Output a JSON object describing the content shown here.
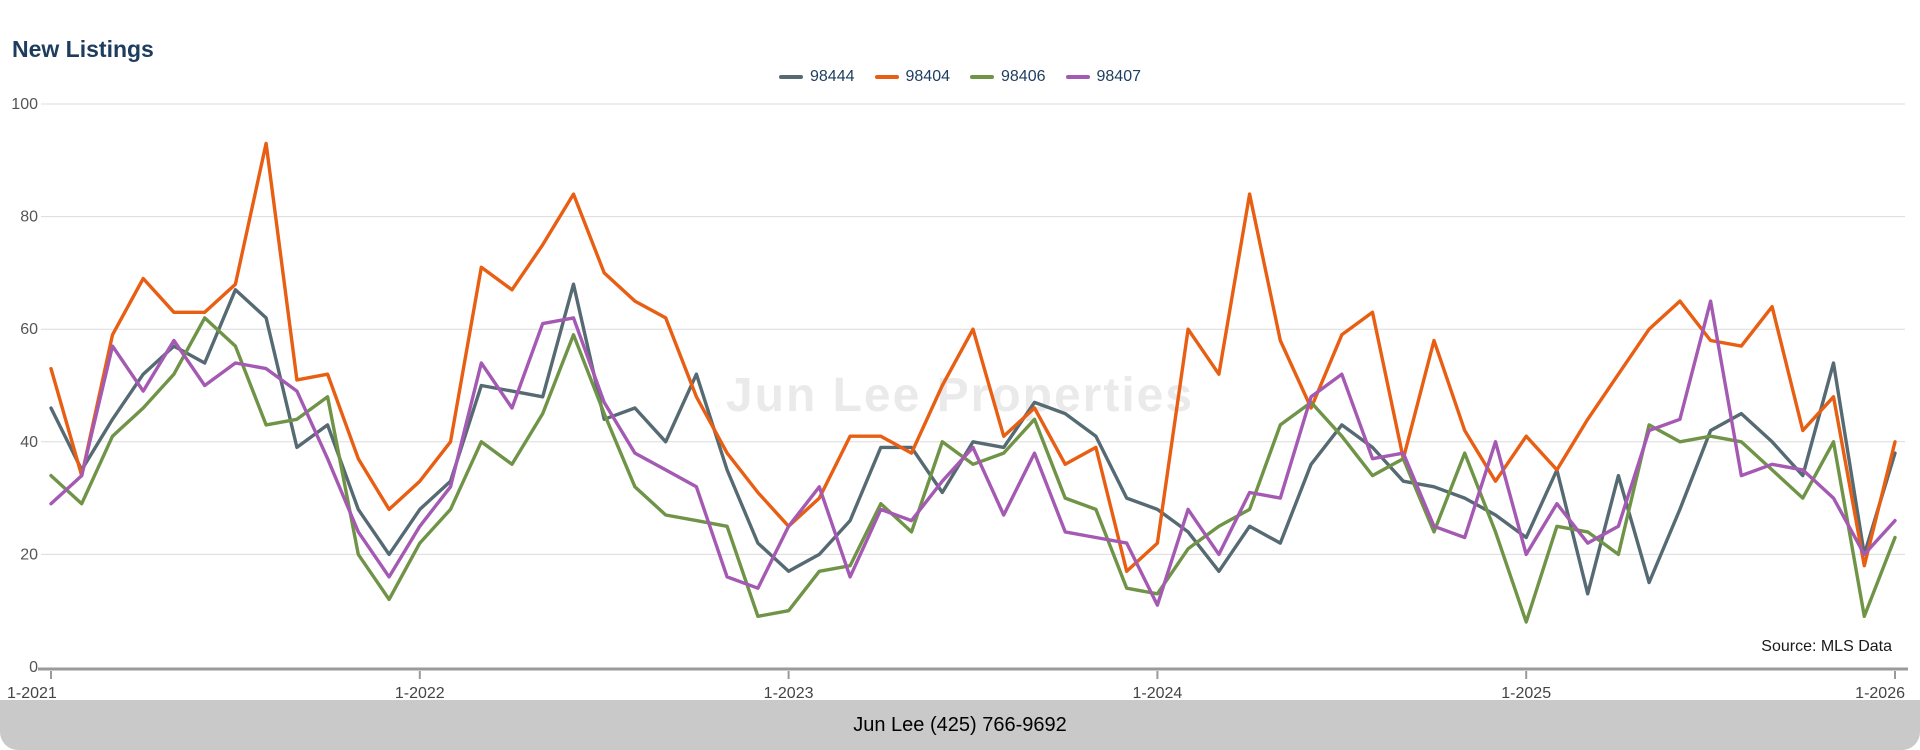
{
  "title": "New Listings",
  "watermark": "Jun Lee Properties",
  "source": "Source: MLS Data",
  "footer": "Jun Lee (425) 766-9692",
  "chart_data": {
    "type": "line",
    "title": "New Listings",
    "xlabel": "",
    "ylabel": "",
    "ylim": [
      0,
      100
    ],
    "yticks": [
      0,
      20,
      40,
      60,
      80,
      100
    ],
    "grid": true,
    "legend_position": "top-center",
    "x_tick_labels": [
      "1-2021",
      "1-2022",
      "1-2023",
      "1-2024",
      "1-2025",
      "1-2026"
    ],
    "x_tick_indices": [
      0,
      12,
      24,
      36,
      48,
      60
    ],
    "x_unit": "month",
    "series": [
      {
        "name": "98444",
        "color": "#566a73",
        "values": [
          46,
          35,
          44,
          52,
          57,
          54,
          67,
          62,
          39,
          43,
          28,
          20,
          28,
          33,
          50,
          49,
          48,
          68,
          44,
          46,
          40,
          52,
          35,
          22,
          17,
          20,
          26,
          39,
          39,
          31,
          40,
          39,
          47,
          45,
          41,
          30,
          28,
          24,
          17,
          25,
          22,
          36,
          43,
          39,
          33,
          32,
          30,
          27,
          23,
          35,
          13,
          34,
          15,
          28,
          42,
          45,
          40,
          34,
          54,
          20,
          38
        ]
      },
      {
        "name": "98404",
        "color": "#e85e12",
        "values": [
          53,
          34,
          59,
          69,
          63,
          63,
          68,
          93,
          51,
          52,
          37,
          28,
          33,
          40,
          71,
          67,
          75,
          84,
          70,
          65,
          62,
          48,
          38,
          31,
          25,
          30,
          41,
          41,
          38,
          50,
          60,
          41,
          46,
          36,
          39,
          17,
          22,
          60,
          52,
          84,
          58,
          46,
          59,
          63,
          37,
          58,
          42,
          33,
          41,
          35,
          44,
          52,
          60,
          65,
          58,
          57,
          64,
          42,
          48,
          18,
          40
        ]
      },
      {
        "name": "98406",
        "color": "#6f9447",
        "values": [
          34,
          29,
          41,
          46,
          52,
          62,
          57,
          43,
          44,
          48,
          20,
          12,
          22,
          28,
          40,
          36,
          45,
          59,
          45,
          32,
          27,
          26,
          25,
          9,
          10,
          17,
          18,
          29,
          24,
          40,
          36,
          38,
          44,
          30,
          28,
          14,
          13,
          21,
          25,
          28,
          43,
          47,
          41,
          34,
          37,
          24,
          38,
          24,
          8,
          25,
          24,
          20,
          43,
          40,
          41,
          40,
          35,
          30,
          40,
          9,
          23
        ]
      },
      {
        "name": "98407",
        "color": "#a45ab2",
        "values": [
          29,
          34,
          57,
          49,
          58,
          50,
          54,
          53,
          49,
          37,
          24,
          16,
          25,
          32,
          54,
          46,
          61,
          62,
          47,
          38,
          35,
          32,
          16,
          14,
          25,
          32,
          16,
          28,
          26,
          33,
          39,
          27,
          38,
          24,
          23,
          22,
          11,
          28,
          20,
          31,
          30,
          48,
          52,
          37,
          38,
          25,
          23,
          40,
          20,
          29,
          22,
          25,
          42,
          44,
          65,
          34,
          36,
          35,
          30,
          20,
          26
        ]
      }
    ]
  }
}
